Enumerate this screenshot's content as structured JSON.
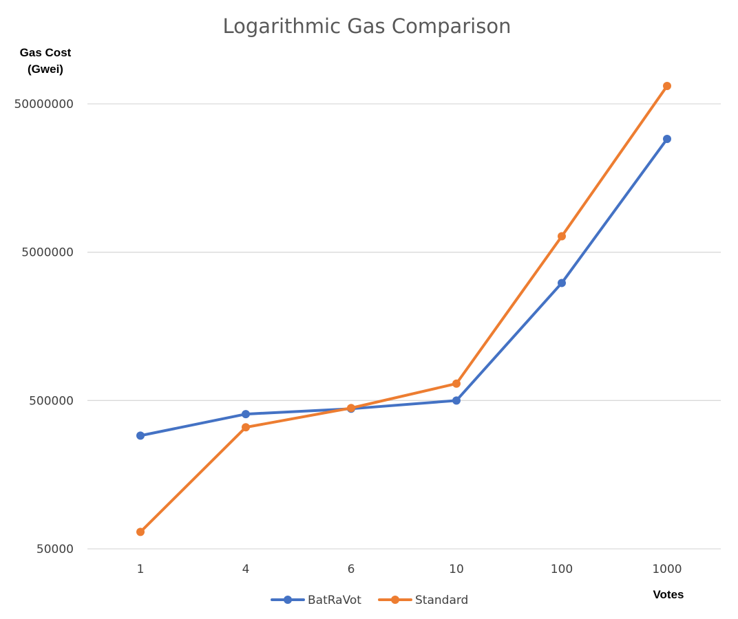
{
  "chart_data": {
    "type": "line",
    "title": "Logarithmic Gas Comparison",
    "ylabel_line1": "Gas Cost",
    "ylabel_line2": "(Gwei)",
    "xlabel": "Votes",
    "categories": [
      "1",
      "4",
      "6",
      "10",
      "100",
      "1000"
    ],
    "y_scale": "log",
    "yticks": [
      50000,
      500000,
      5000000,
      50000000
    ],
    "ytick_labels": [
      "50000",
      "500000",
      "5000000",
      "50000000"
    ],
    "ylim": [
      50000,
      65000000
    ],
    "grid": true,
    "legend_position": "bottom",
    "series": [
      {
        "name": "BatRaVot",
        "color": "#4472c4",
        "values": [
          290000,
          405000,
          440000,
          500000,
          3100000,
          29000000
        ]
      },
      {
        "name": "Standard",
        "color": "#ed7d31",
        "values": [
          65000,
          330000,
          445000,
          650000,
          6400000,
          66000000
        ]
      }
    ]
  }
}
